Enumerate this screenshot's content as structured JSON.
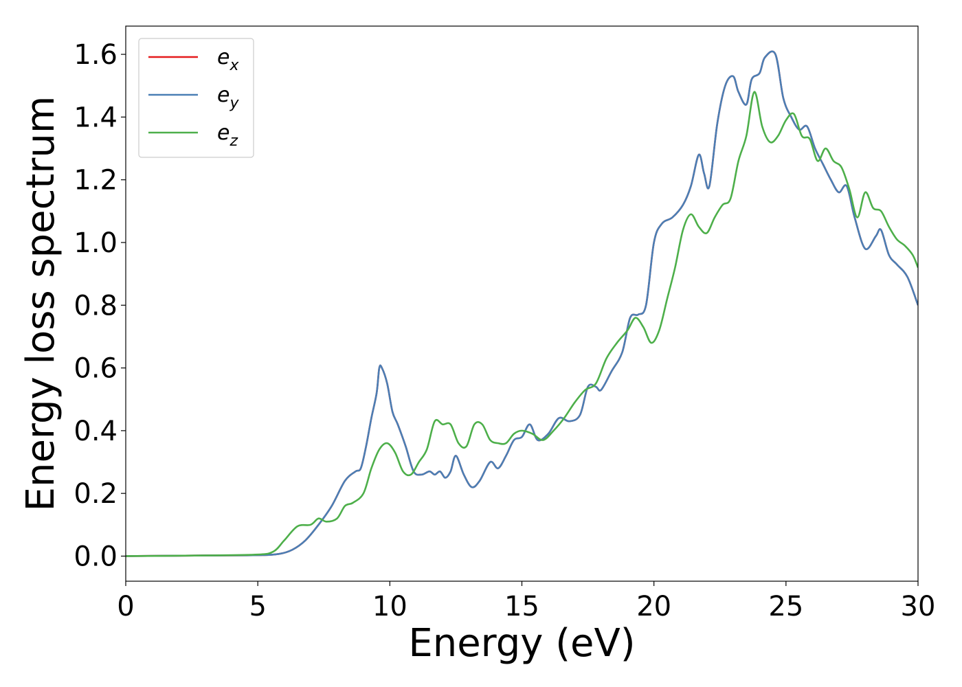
{
  "chart_data": {
    "type": "line",
    "title": "",
    "xlabel": "Energy (eV)",
    "ylabel": "Energy loss spectrum",
    "xlim": [
      0,
      30
    ],
    "ylim": [
      -0.08,
      1.69
    ],
    "xticks": [
      "0",
      "5",
      "10",
      "15",
      "20",
      "25",
      "30"
    ],
    "yticks": [
      "0.0",
      "0.2",
      "0.4",
      "0.6",
      "0.8",
      "1.0",
      "1.2",
      "1.4",
      "1.6"
    ],
    "grid": false,
    "legend_position": "top-left",
    "series": [
      {
        "name": "e_x",
        "legend_base": "e",
        "legend_sub": "x",
        "color": "#e41a1c",
        "x": [
          0,
          3,
          5,
          5.8,
          6.3,
          6.8,
          7.3,
          7.8,
          8.3,
          8.7,
          8.9,
          9.1,
          9.3,
          9.5,
          9.6,
          9.7,
          9.9,
          10.1,
          10.3,
          10.6,
          10.9,
          11.2,
          11.5,
          11.7,
          11.9,
          12.1,
          12.3,
          12.5,
          12.8,
          13.1,
          13.4,
          13.8,
          14.1,
          14.4,
          14.7,
          15.0,
          15.3,
          15.6,
          16.0,
          16.4,
          16.8,
          17.2,
          17.5,
          17.8,
          18.0,
          18.4,
          18.8,
          19.1,
          19.4,
          19.7,
          20.0,
          20.3,
          20.7,
          21.1,
          21.4,
          21.7,
          21.9,
          22.1,
          22.4,
          22.7,
          23.0,
          23.2,
          23.5,
          23.7,
          24.0,
          24.2,
          24.6,
          24.9,
          25.2,
          25.5,
          25.8,
          26.1,
          26.4,
          26.7,
          27.0,
          27.3,
          27.6,
          28.0,
          28.4,
          28.6,
          28.9,
          29.2,
          29.6,
          30.0
        ],
        "y": [
          0,
          0.002,
          0.003,
          0.007,
          0.02,
          0.05,
          0.1,
          0.16,
          0.24,
          0.27,
          0.28,
          0.35,
          0.44,
          0.52,
          0.6,
          0.6,
          0.55,
          0.46,
          0.42,
          0.35,
          0.27,
          0.26,
          0.27,
          0.26,
          0.27,
          0.25,
          0.27,
          0.32,
          0.26,
          0.22,
          0.24,
          0.3,
          0.28,
          0.32,
          0.37,
          0.38,
          0.42,
          0.37,
          0.39,
          0.44,
          0.43,
          0.45,
          0.54,
          0.54,
          0.53,
          0.59,
          0.65,
          0.76,
          0.77,
          0.8,
          1.0,
          1.06,
          1.08,
          1.12,
          1.18,
          1.28,
          1.22,
          1.18,
          1.38,
          1.5,
          1.53,
          1.48,
          1.44,
          1.52,
          1.54,
          1.59,
          1.6,
          1.46,
          1.4,
          1.36,
          1.37,
          1.3,
          1.25,
          1.2,
          1.16,
          1.18,
          1.08,
          0.98,
          1.02,
          1.04,
          0.96,
          0.93,
          0.89,
          0.8
        ]
      },
      {
        "name": "e_y",
        "legend_base": "e",
        "legend_sub": "y",
        "color": "#4a7fb5",
        "x": [
          0,
          3,
          5,
          5.8,
          6.3,
          6.8,
          7.3,
          7.8,
          8.3,
          8.7,
          8.9,
          9.1,
          9.3,
          9.5,
          9.6,
          9.7,
          9.9,
          10.1,
          10.3,
          10.6,
          10.9,
          11.2,
          11.5,
          11.7,
          11.9,
          12.1,
          12.3,
          12.5,
          12.8,
          13.1,
          13.4,
          13.8,
          14.1,
          14.4,
          14.7,
          15.0,
          15.3,
          15.6,
          16.0,
          16.4,
          16.8,
          17.2,
          17.5,
          17.8,
          18.0,
          18.4,
          18.8,
          19.1,
          19.4,
          19.7,
          20.0,
          20.3,
          20.7,
          21.1,
          21.4,
          21.7,
          21.9,
          22.1,
          22.4,
          22.7,
          23.0,
          23.2,
          23.5,
          23.7,
          24.0,
          24.2,
          24.6,
          24.9,
          25.2,
          25.5,
          25.8,
          26.1,
          26.4,
          26.7,
          27.0,
          27.3,
          27.6,
          28.0,
          28.4,
          28.6,
          28.9,
          29.2,
          29.6,
          30.0
        ],
        "y": [
          0,
          0.002,
          0.003,
          0.007,
          0.02,
          0.05,
          0.1,
          0.16,
          0.24,
          0.27,
          0.28,
          0.35,
          0.44,
          0.52,
          0.6,
          0.6,
          0.55,
          0.46,
          0.42,
          0.35,
          0.27,
          0.26,
          0.27,
          0.26,
          0.27,
          0.25,
          0.27,
          0.32,
          0.26,
          0.22,
          0.24,
          0.3,
          0.28,
          0.32,
          0.37,
          0.38,
          0.42,
          0.37,
          0.39,
          0.44,
          0.43,
          0.45,
          0.54,
          0.54,
          0.53,
          0.59,
          0.65,
          0.76,
          0.77,
          0.8,
          1.0,
          1.06,
          1.08,
          1.12,
          1.18,
          1.28,
          1.22,
          1.18,
          1.38,
          1.5,
          1.53,
          1.48,
          1.44,
          1.52,
          1.54,
          1.59,
          1.6,
          1.46,
          1.4,
          1.36,
          1.37,
          1.3,
          1.25,
          1.2,
          1.16,
          1.18,
          1.08,
          0.98,
          1.02,
          1.04,
          0.96,
          0.93,
          0.89,
          0.8
        ]
      },
      {
        "name": "e_z",
        "legend_base": "e",
        "legend_sub": "z",
        "color": "#4daf4a",
        "x": [
          0,
          3,
          5,
          5.6,
          6.0,
          6.5,
          7.0,
          7.3,
          7.6,
          8.0,
          8.3,
          8.6,
          9.0,
          9.3,
          9.6,
          9.9,
          10.2,
          10.5,
          10.8,
          11.1,
          11.4,
          11.7,
          12.0,
          12.3,
          12.6,
          12.9,
          13.2,
          13.5,
          13.8,
          14.1,
          14.4,
          14.7,
          15.0,
          15.4,
          15.8,
          16.2,
          16.6,
          17.0,
          17.4,
          17.8,
          18.2,
          18.6,
          19.0,
          19.3,
          19.6,
          19.9,
          20.2,
          20.5,
          20.8,
          21.1,
          21.4,
          21.7,
          22.0,
          22.3,
          22.6,
          22.9,
          23.2,
          23.5,
          23.8,
          24.1,
          24.4,
          24.7,
          25.0,
          25.3,
          25.6,
          25.9,
          26.2,
          26.5,
          26.8,
          27.1,
          27.4,
          27.7,
          28.0,
          28.3,
          28.6,
          28.9,
          29.2,
          29.5,
          29.8,
          30.0
        ],
        "y": [
          0,
          0.002,
          0.005,
          0.015,
          0.05,
          0.095,
          0.1,
          0.12,
          0.11,
          0.12,
          0.16,
          0.17,
          0.2,
          0.28,
          0.34,
          0.36,
          0.33,
          0.27,
          0.26,
          0.3,
          0.34,
          0.43,
          0.42,
          0.42,
          0.36,
          0.35,
          0.42,
          0.42,
          0.37,
          0.36,
          0.36,
          0.39,
          0.4,
          0.39,
          0.37,
          0.4,
          0.44,
          0.49,
          0.53,
          0.55,
          0.63,
          0.68,
          0.72,
          0.76,
          0.73,
          0.68,
          0.72,
          0.82,
          0.92,
          1.04,
          1.09,
          1.05,
          1.03,
          1.08,
          1.12,
          1.14,
          1.26,
          1.34,
          1.48,
          1.37,
          1.32,
          1.34,
          1.39,
          1.41,
          1.34,
          1.33,
          1.26,
          1.3,
          1.26,
          1.24,
          1.17,
          1.08,
          1.16,
          1.11,
          1.1,
          1.05,
          1.01,
          0.99,
          0.96,
          0.92
        ]
      }
    ]
  }
}
